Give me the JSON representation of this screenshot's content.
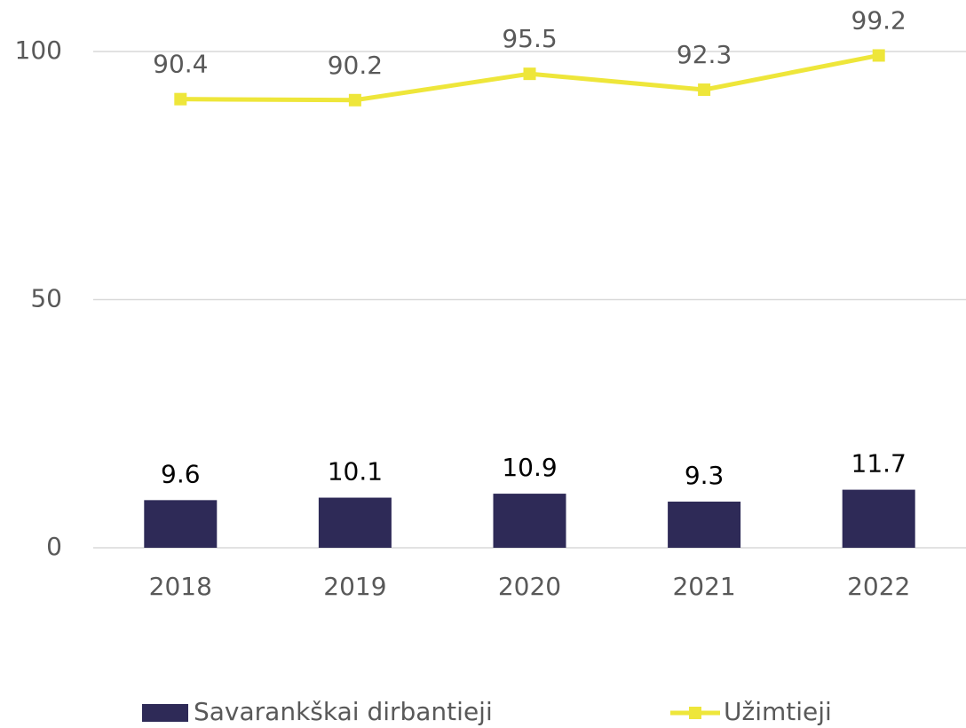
{
  "chart_data": {
    "type": "combo",
    "categories": [
      "2018",
      "2019",
      "2020",
      "2021",
      "2022"
    ],
    "series": [
      {
        "name": "Savarankškai dirbantieji",
        "type": "bar",
        "color": "#2e2a57",
        "values": [
          9.6,
          10.1,
          10.9,
          9.3,
          11.7
        ]
      },
      {
        "name": "Užimtieji",
        "type": "line",
        "color": "#eee63a",
        "values": [
          90.4,
          90.2,
          95.5,
          92.3,
          99.2
        ]
      }
    ],
    "ylim": [
      0,
      100
    ],
    "yticks": [
      0,
      50,
      100
    ],
    "grid": true,
    "legend": "bottom"
  }
}
